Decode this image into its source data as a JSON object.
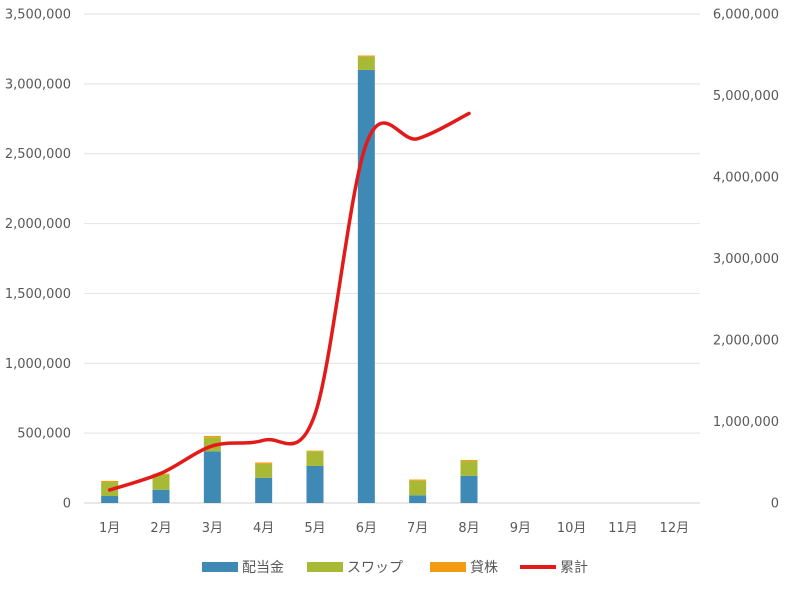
{
  "chart_data": {
    "type": "bar",
    "stacked": true,
    "categories": [
      "1月",
      "2月",
      "3月",
      "4月",
      "5月",
      "6月",
      "7月",
      "8月",
      "9月",
      "10月",
      "11月",
      "12月"
    ],
    "series": [
      {
        "name": "配当金",
        "type": "bar",
        "axis": "left",
        "color": "#3f8ab5",
        "values": [
          50000,
          95000,
          370000,
          180000,
          265000,
          3100000,
          55000,
          195000,
          null,
          null,
          null,
          null
        ]
      },
      {
        "name": "スワップ",
        "type": "bar",
        "axis": "left",
        "color": "#a8b936",
        "values": [
          100000,
          110000,
          100000,
          100000,
          105000,
          95000,
          105000,
          105000,
          null,
          null,
          null,
          null
        ]
      },
      {
        "name": "貸株",
        "type": "bar",
        "axis": "left",
        "color": "#f39c12",
        "values": [
          8000,
          5000,
          10000,
          10000,
          5000,
          8000,
          8000,
          8000,
          null,
          null,
          null,
          null
        ]
      },
      {
        "name": "累計",
        "type": "line",
        "axis": "right",
        "color": "#e31a1a",
        "values": [
          160000,
          365000,
          700000,
          770000,
          1090000,
          4410000,
          4470000,
          4780000,
          null,
          null,
          null,
          null
        ]
      }
    ],
    "y_left": {
      "min": 0,
      "max": 3500000,
      "ticks": [
        "0",
        "500,000",
        "1,000,000",
        "1,500,000",
        "2,000,000",
        "2,500,000",
        "3,000,000",
        "3,500,000"
      ]
    },
    "y_right": {
      "min": 0,
      "max": 6000000,
      "ticks": [
        "0",
        "1,000,000",
        "2,000,000",
        "3,000,000",
        "4,000,000",
        "5,000,000",
        "6,000,000"
      ]
    },
    "grid": true,
    "legend_position": "bottom",
    "title": "",
    "xlabel": "",
    "ylabel": ""
  }
}
